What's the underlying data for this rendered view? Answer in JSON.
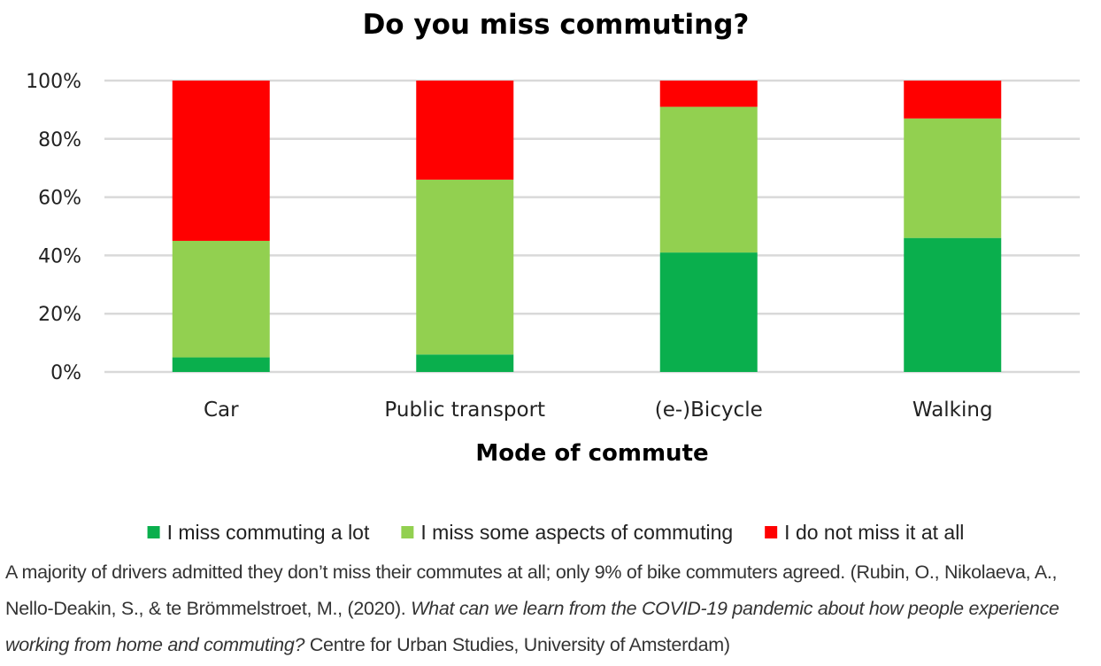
{
  "chart_data": {
    "type": "bar",
    "stacked": true,
    "title": "Do you miss commuting?",
    "xlabel": "Mode of commute",
    "ylabel": "",
    "ylim": [
      0,
      100
    ],
    "yticks": [
      "0%",
      "20%",
      "40%",
      "60%",
      "80%",
      "100%"
    ],
    "categories": [
      "Car",
      "Public transport",
      "(e-)Bicycle",
      "Walking"
    ],
    "series": [
      {
        "name": "I miss commuting a lot",
        "color": "#0AAF4D",
        "values": [
          5,
          6,
          41,
          46
        ]
      },
      {
        "name": "I miss some aspects of commuting",
        "color": "#92D050",
        "values": [
          40,
          60,
          50,
          41
        ]
      },
      {
        "name": "I do not miss it at all",
        "color": "#FF0000",
        "values": [
          55,
          34,
          9,
          13
        ]
      }
    ],
    "grid": true,
    "legend": "bottom"
  },
  "caption": {
    "text": "A majority of drivers admitted they don’t miss their commutes at all; only 9% of bike commuters agreed. (Rubin, O., Nikolaeva, A., Nello-Deakin, S., & te Brömmelstroet, M., (2020). ",
    "italic": "What can we learn from the COVID-19 pandemic about how people experience working from home and commuting?",
    "tail": " Centre for Urban Studies, University of Amsterdam)"
  }
}
